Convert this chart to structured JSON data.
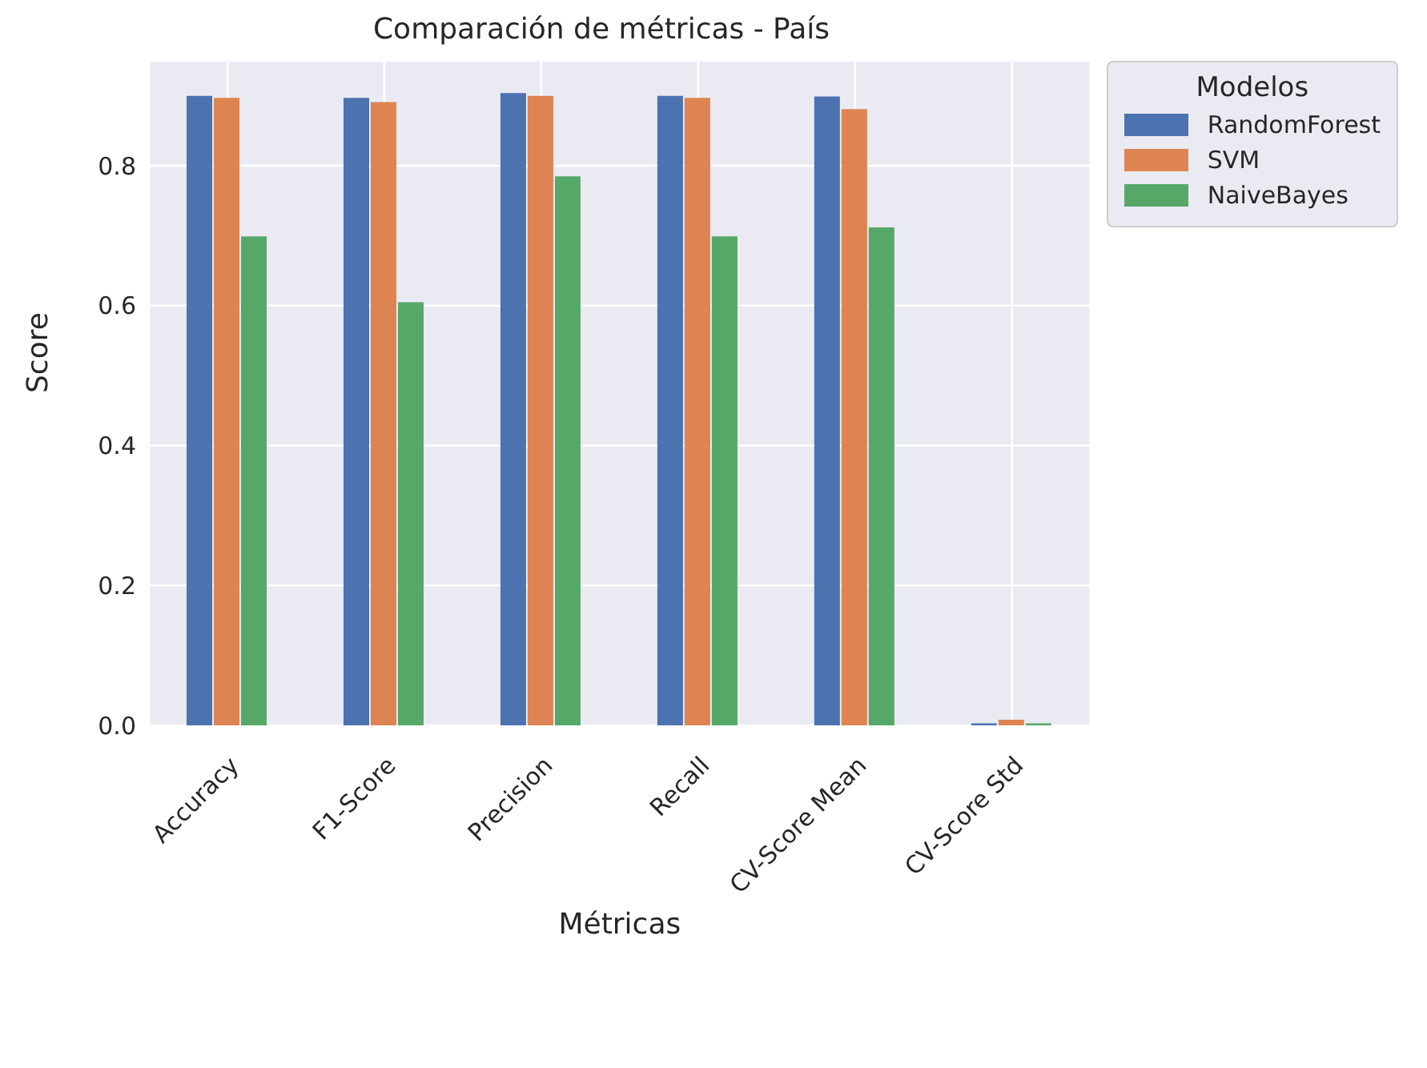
{
  "chart_data": {
    "type": "bar",
    "title": "Comparación de métricas - País",
    "xlabel": "Métricas",
    "ylabel": "Score",
    "legend_title": "Modelos",
    "categories": [
      "Accuracy",
      "F1-Score",
      "Precision",
      "Recall",
      "CV-Score Mean",
      "CV-Score Std"
    ],
    "series": [
      {
        "name": "RandomForest",
        "color": "#4c72b0",
        "values": [
          0.9,
          0.897,
          0.904,
          0.9,
          0.899,
          0.003
        ]
      },
      {
        "name": "SVM",
        "color": "#dd8452",
        "values": [
          0.897,
          0.891,
          0.9,
          0.897,
          0.881,
          0.008
        ]
      },
      {
        "name": "NaiveBayes",
        "color": "#55a868",
        "values": [
          0.699,
          0.605,
          0.785,
          0.699,
          0.712,
          0.003
        ]
      }
    ],
    "ylim": [
      0,
      0.95
    ],
    "yticks": [
      {
        "value": 0,
        "label": "0.0"
      },
      {
        "value": 0.2,
        "label": "0.2"
      },
      {
        "value": 0.4,
        "label": "0.4"
      },
      {
        "value": 0.6,
        "label": "0.6"
      },
      {
        "value": 0.8,
        "label": "0.8"
      }
    ],
    "grid": true,
    "legend": "top right"
  }
}
